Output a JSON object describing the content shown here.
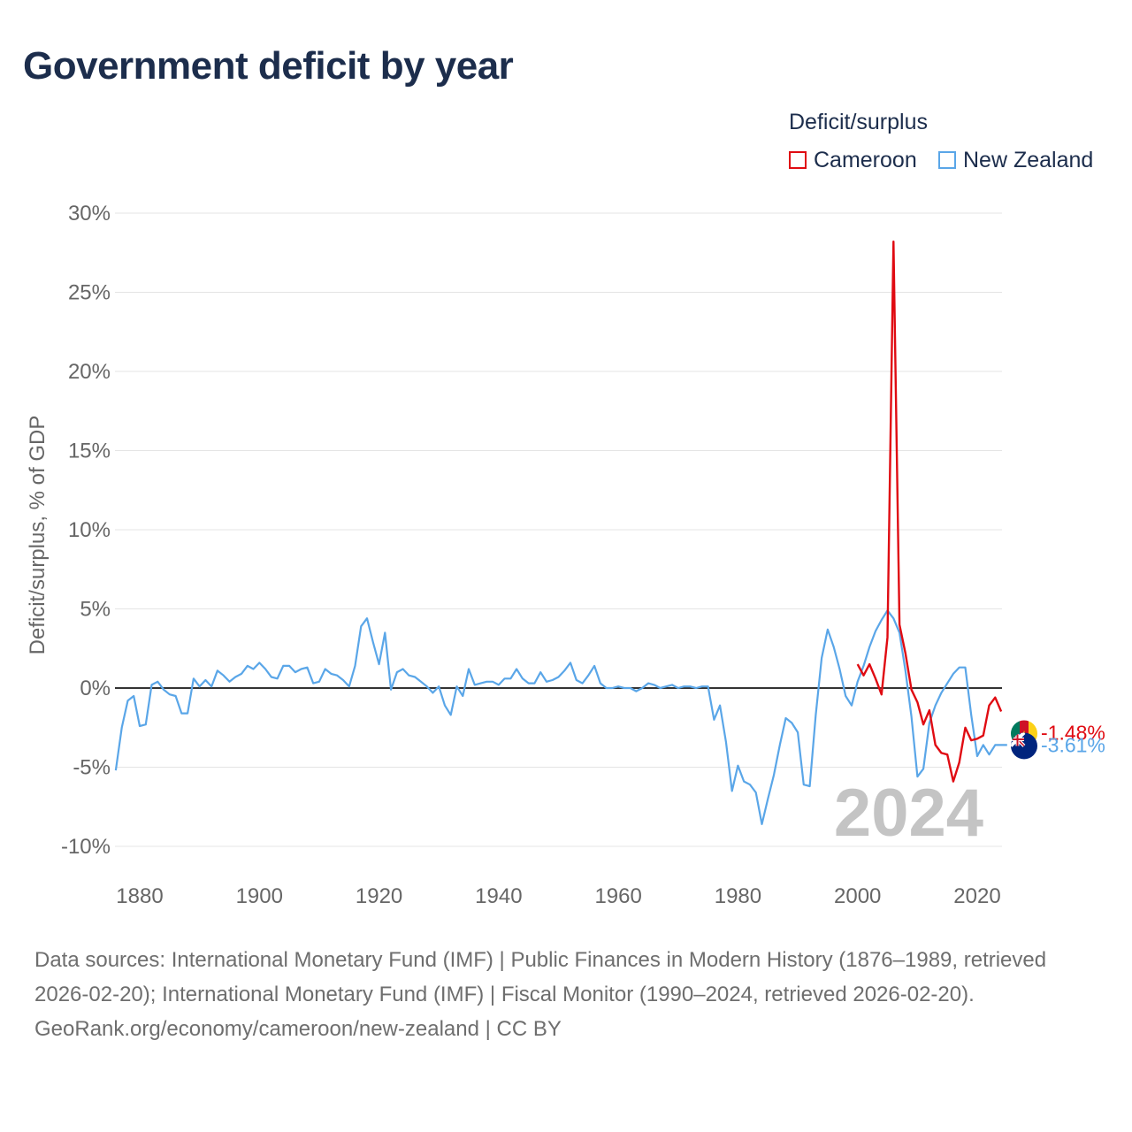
{
  "title": "Government deficit by year",
  "legend": {
    "title": "Deficit/surplus",
    "items": [
      {
        "label": "Cameroon",
        "color": "#e00b12"
      },
      {
        "label": "New Zealand",
        "color": "#5aa6e8"
      }
    ]
  },
  "chart_data": {
    "type": "line",
    "title": "Government deficit by year",
    "xlabel": "",
    "ylabel": "Deficit/surplus, % of GDP",
    "xlim": [
      1876,
      2024
    ],
    "ylim": [
      -10,
      30
    ],
    "x_ticks": [
      1880,
      1900,
      1920,
      1940,
      1960,
      1980,
      2000,
      2020
    ],
    "y_ticks": [
      {
        "value": -10,
        "label": "-10%"
      },
      {
        "value": -5,
        "label": "-5%"
      },
      {
        "value": 0,
        "label": "0%"
      },
      {
        "value": 5,
        "label": "5%"
      },
      {
        "value": 10,
        "label": "10%"
      },
      {
        "value": 15,
        "label": "15%"
      },
      {
        "value": 20,
        "label": "20%"
      },
      {
        "value": 25,
        "label": "25%"
      },
      {
        "value": 30,
        "label": "30%"
      }
    ],
    "year_watermark": "2024",
    "grid": true,
    "series": [
      {
        "name": "New Zealand",
        "color": "#5aa6e8",
        "end_label": "-3.61%",
        "x_start": 1876,
        "values": [
          -5.2,
          -2.5,
          -0.8,
          -0.5,
          -2.4,
          -2.3,
          0.2,
          0.4,
          -0.1,
          -0.4,
          -0.5,
          -1.6,
          -1.6,
          0.6,
          0.1,
          0.5,
          0.1,
          1.1,
          0.8,
          0.4,
          0.7,
          0.9,
          1.4,
          1.2,
          1.6,
          1.2,
          0.7,
          0.6,
          1.4,
          1.4,
          1.0,
          1.2,
          1.3,
          0.3,
          0.4,
          1.2,
          0.9,
          0.8,
          0.5,
          0.1,
          1.4,
          3.9,
          4.4,
          2.9,
          1.5,
          3.5,
          -0.1,
          1.0,
          1.2,
          0.8,
          0.7,
          0.4,
          0.1,
          -0.3,
          0.1,
          -1.1,
          -1.7,
          0.1,
          -0.5,
          1.2,
          0.2,
          0.3,
          0.4,
          0.4,
          0.2,
          0.6,
          0.6,
          1.2,
          0.6,
          0.3,
          0.3,
          1.0,
          0.4,
          0.5,
          0.7,
          1.1,
          1.6,
          0.5,
          0.3,
          0.8,
          1.4,
          0.3,
          0.0,
          0.0,
          0.1,
          0.0,
          0.0,
          -0.2,
          0.0,
          0.3,
          0.2,
          0.0,
          0.1,
          0.2,
          0.0,
          0.1,
          0.1,
          0.0,
          0.1,
          0.1,
          -2.0,
          -1.1,
          -3.4,
          -6.5,
          -4.9,
          -5.9,
          -6.1,
          -6.6,
          -8.6,
          -7.0,
          -5.5,
          -3.6,
          -1.9,
          -2.2,
          -2.8,
          -6.1,
          -6.2,
          -1.7,
          1.9,
          3.7,
          2.6,
          1.2,
          -0.5,
          -1.1,
          0.4,
          1.4,
          2.6,
          3.6,
          4.3,
          4.9,
          4.4,
          3.5,
          1.1,
          -1.8,
          -5.6,
          -5.1,
          -2.2,
          -1.1,
          -0.3,
          0.3,
          0.9,
          1.3,
          1.3,
          -1.7,
          -4.3,
          -3.6,
          -4.2,
          -3.6,
          -3.6,
          -3.6
        ]
      },
      {
        "name": "Cameroon",
        "color": "#e00b12",
        "end_label": "-1.48%",
        "x_start": 2000,
        "values": [
          1.5,
          0.8,
          1.5,
          0.6,
          -0.4,
          3.2,
          28.2,
          4.0,
          2.2,
          -0.1,
          -0.9,
          -2.3,
          -1.4,
          -3.6,
          -4.1,
          -4.2,
          -5.9,
          -4.7,
          -2.5,
          -3.3,
          -3.2,
          -3.0,
          -1.1,
          -0.6,
          -1.48
        ]
      }
    ]
  },
  "footer": {
    "sources": "Data sources: International Monetary Fund (IMF) | Public Finances in Modern History (1876–1989, retrieved 2026-02-20); International Monetary Fund (IMF) | Fiscal Monitor (1990–2024, retrieved 2026-02-20).",
    "credit": "GeoRank.org/economy/cameroon/new-zealand | CC BY"
  }
}
